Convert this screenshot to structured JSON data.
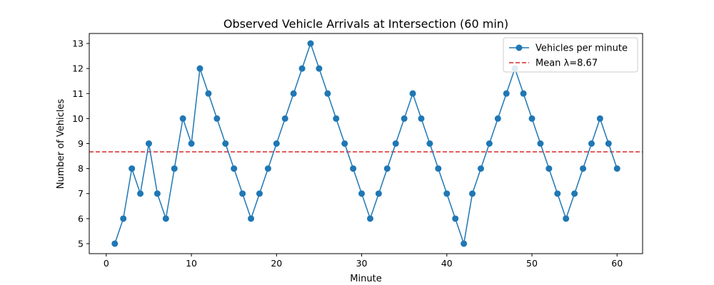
{
  "chart_data": {
    "type": "line",
    "title": "Observed Vehicle Arrivals at Intersection (60 min)",
    "xlabel": "Minute",
    "ylabel": "Number of Vehicles",
    "xlim": [
      -2,
      63
    ],
    "ylim": [
      4.6,
      13.4
    ],
    "xticks": [
      0,
      10,
      20,
      30,
      40,
      50,
      60
    ],
    "yticks": [
      5,
      6,
      7,
      8,
      9,
      10,
      11,
      12,
      13
    ],
    "grid": false,
    "legend_position": "top-right",
    "series": [
      {
        "name": "Vehicles per minute",
        "color": "#1f77b4",
        "marker": "circle",
        "x": [
          1,
          2,
          3,
          4,
          5,
          6,
          7,
          8,
          9,
          10,
          11,
          12,
          13,
          14,
          15,
          16,
          17,
          18,
          19,
          20,
          21,
          22,
          23,
          24,
          25,
          26,
          27,
          28,
          29,
          30,
          31,
          32,
          33,
          34,
          35,
          36,
          37,
          38,
          39,
          40,
          41,
          42,
          43,
          44,
          45,
          46,
          47,
          48,
          49,
          50,
          51,
          52,
          53,
          54,
          55,
          56,
          57,
          58,
          59,
          60
        ],
        "values": [
          5,
          6,
          8,
          7,
          9,
          7,
          6,
          8,
          10,
          9,
          12,
          11,
          10,
          9,
          8,
          7,
          6,
          7,
          8,
          9,
          10,
          11,
          12,
          13,
          12,
          11,
          10,
          9,
          8,
          7,
          6,
          7,
          8,
          9,
          10,
          11,
          10,
          9,
          8,
          7,
          6,
          5,
          7,
          8,
          9,
          10,
          11,
          12,
          11,
          10,
          9,
          8,
          7,
          6,
          7,
          8,
          9,
          10,
          9,
          8
        ]
      }
    ],
    "reference_lines": [
      {
        "name": "Mean λ=8.67",
        "value": 8.67,
        "color": "#d62728",
        "style": "dashed"
      }
    ]
  }
}
